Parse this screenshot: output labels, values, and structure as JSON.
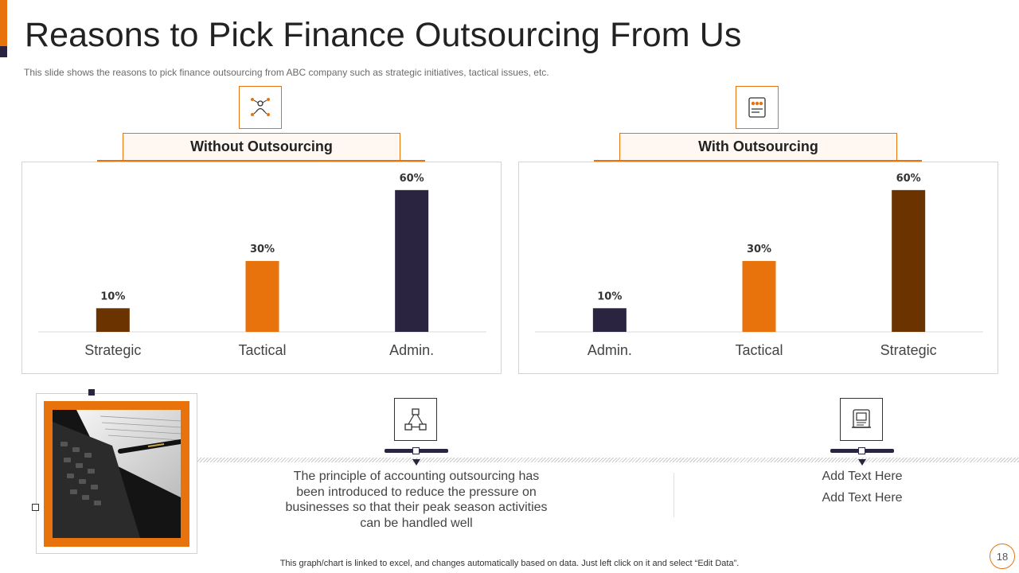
{
  "slide": {
    "title": "Reasons to Pick Finance Outsourcing From Us",
    "subtitle": "This slide shows the reasons to pick finance outsourcing from ABC company such as strategic initiatives, tactical issues, etc.",
    "footer": "This graph/chart is linked to excel,  and changes automatically based on data. Just left click on it and select “Edit Data”.",
    "page_number": "18"
  },
  "colors": {
    "orange": "#e8730c",
    "dark_navy": "#2a2440",
    "brown": "#6b3300"
  },
  "icons": {
    "left_panel": "team-network-icon",
    "right_panel": "outsourcing-people-icon",
    "item_1": "network-hierarchy-icon",
    "item_2": "scroll-document-icon"
  },
  "chart_data": [
    {
      "type": "bar",
      "title": "Without Outsourcing",
      "categories": [
        "Strategic",
        "Tactical",
        "Admin."
      ],
      "values": [
        10,
        30,
        60
      ],
      "value_labels": [
        "10%",
        "30%",
        "60%"
      ],
      "bar_colors": [
        "#6b3300",
        "#e8730c",
        "#2a2440"
      ],
      "ylim": [
        0,
        65
      ],
      "grid": false,
      "legend": "none"
    },
    {
      "type": "bar",
      "title": "With Outsourcing",
      "categories": [
        "Admin.",
        "Tactical",
        "Strategic"
      ],
      "values": [
        10,
        30,
        60
      ],
      "value_labels": [
        "10%",
        "30%",
        "60%"
      ],
      "bar_colors": [
        "#2a2440",
        "#e8730c",
        "#6b3300"
      ],
      "ylim": [
        0,
        65
      ],
      "grid": false,
      "legend": "none"
    }
  ],
  "notes": {
    "item_1_text": "The principle of accounting outsourcing has been introduced to reduce the pressure on businesses so that their peak season activities can be handled well",
    "item_2_line_1": "Add Text Here",
    "item_2_line_2": "Add Text Here"
  }
}
